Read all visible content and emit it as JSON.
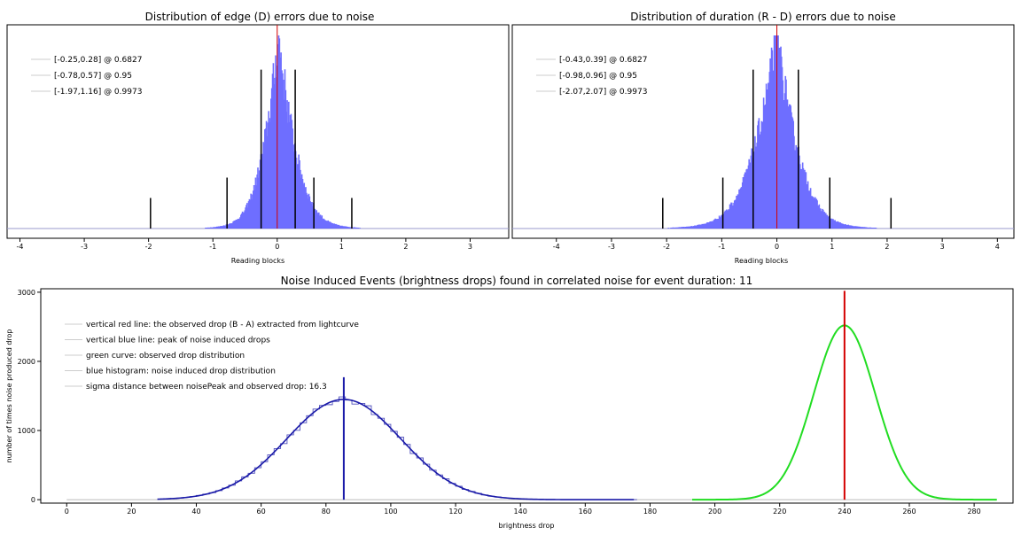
{
  "colors": {
    "histogram": "#5555ff",
    "histogram_edge": "#aaaaff",
    "red_line": "#d40000",
    "blue_line": "#1a1aa8",
    "green_curve": "#22dd22",
    "legend_line": "#cccccc",
    "baseline": "#9999cc"
  },
  "chart_data": [
    {
      "type": "histogram",
      "title": "Distribution of edge (D) errors due to noise",
      "xlabel": "Reading blocks",
      "ylabel": "",
      "xlim": [
        -4.2,
        3.6
      ],
      "xticks": [
        -4,
        -3,
        -2,
        -1,
        0,
        1,
        2,
        3
      ],
      "center": 0.02,
      "sigma_left": 0.25,
      "sigma_right": 0.28,
      "red_line_x": 0,
      "intervals": [
        {
          "label": "[-0.25,0.28] @ 0.6827",
          "low": -0.25,
          "high": 0.28,
          "height": 0.78
        },
        {
          "label": "[-0.78,0.57] @ 0.95",
          "low": -0.78,
          "high": 0.57,
          "height": 0.25
        },
        {
          "label": "[-1.97,1.16] @ 0.9973",
          "low": -1.97,
          "high": 1.16,
          "height": 0.15
        }
      ]
    },
    {
      "type": "histogram",
      "title": "Distribution of duration (R - D) errors due to noise",
      "xlabel": "Reading blocks",
      "ylabel": "",
      "xlim": [
        -4.8,
        4.3
      ],
      "xticks": [
        -4,
        -3,
        -2,
        -1,
        0,
        1,
        2,
        3,
        4
      ],
      "center": 0.0,
      "sigma_left": 0.43,
      "sigma_right": 0.39,
      "red_line_x": 0,
      "intervals": [
        {
          "label": "[-0.43,0.39] @ 0.6827",
          "low": -0.43,
          "high": 0.39,
          "height": 0.78
        },
        {
          "label": "[-0.98,0.96] @ 0.95",
          "low": -0.98,
          "high": 0.96,
          "height": 0.25
        },
        {
          "label": "[-2.07,2.07] @ 0.9973",
          "low": -2.07,
          "high": 2.07,
          "height": 0.15
        }
      ]
    },
    {
      "type": "line",
      "title": "Noise Induced Events (brightness drops) found in correlated noise for event duration: 11",
      "xlabel": "brightness drop",
      "ylabel": "number of times noise produced drop",
      "xlim": [
        -8,
        292
      ],
      "ylim": [
        -50,
        3050
      ],
      "xticks": [
        0,
        20,
        40,
        60,
        80,
        100,
        120,
        140,
        160,
        180,
        200,
        220,
        240,
        260,
        280
      ],
      "yticks": [
        0,
        1000,
        2000,
        3000
      ],
      "legend": [
        "vertical red line: the observed drop (B - A) extracted from lightcurve",
        "vertical blue line: peak of noise induced drops",
        "green curve: observed drop distribution",
        "blue histogram: noise induced drop distribution",
        "sigma distance between noisePeak and observed drop: 16.3"
      ],
      "noise_distribution": {
        "mean": 85.5,
        "sigma": 17.6,
        "peak": 1450,
        "x_range": [
          28,
          175
        ]
      },
      "observed_distribution": {
        "mean": 240,
        "sigma": 9.5,
        "peak": 2520,
        "x_range": [
          193,
          287
        ]
      },
      "blue_line": {
        "x": 85.5,
        "top": 1770
      },
      "red_line": {
        "x": 240,
        "top": 3020
      },
      "baseline_range": [
        0,
        287
      ]
    }
  ]
}
